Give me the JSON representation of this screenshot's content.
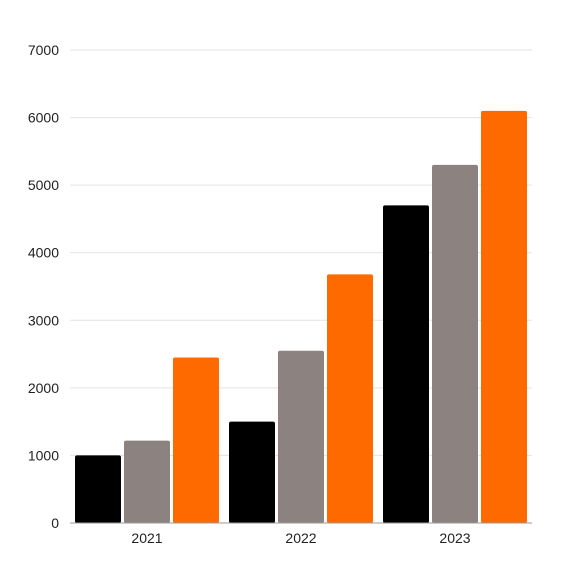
{
  "chart_data": {
    "type": "bar",
    "title": "",
    "xlabel": "",
    "ylabel": "",
    "categories": [
      "2021",
      "2022",
      "2023"
    ],
    "series": [
      {
        "values": [
          1000,
          1500,
          4700
        ],
        "color": "#000000"
      },
      {
        "values": [
          1220,
          2550,
          5300
        ],
        "color": "#8c8280"
      },
      {
        "values": [
          2450,
          3680,
          6100
        ],
        "color": "#ff6a00"
      }
    ],
    "ylim": [
      0,
      7000
    ],
    "yticks": [
      "0",
      "1000",
      "2000",
      "3000",
      "4000",
      "5000",
      "6000",
      "7000"
    ],
    "grid": true,
    "legend": "none"
  }
}
